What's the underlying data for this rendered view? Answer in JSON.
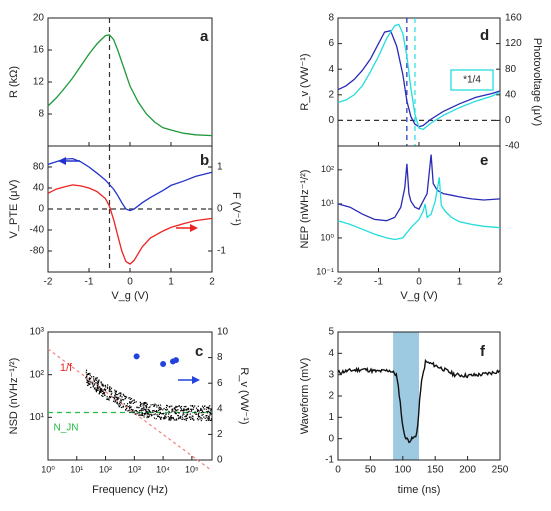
{
  "colors": {
    "green": "#1d9a3a",
    "blue": "#2233cc",
    "red": "#ee2222",
    "cyan": "#22dddd",
    "navy": "#2a2ab8",
    "black": "#111111",
    "pink": "#f08080",
    "ngreen": "#22bb44",
    "highlight": "#9ecae1"
  },
  "panels": {
    "a": {
      "letter": "a",
      "ylabel": "R (kΩ)",
      "yticks": [
        "20",
        "16",
        "12",
        "8"
      ]
    },
    "b": {
      "letter": "b",
      "ylabel": "V_PTE (μV)",
      "ylabel_right": "F (V⁻¹)",
      "yticks": [
        "80",
        "40",
        "0",
        "-40",
        "-80"
      ],
      "yticks_right": [
        "1",
        "0",
        "-1"
      ],
      "xticks": [
        "-2",
        "-1",
        "0",
        "1",
        "2"
      ],
      "xlabel": "V_g (V)"
    },
    "c": {
      "letter": "c",
      "ylabel": "NSD (nVHz⁻¹/²)",
      "ylabel_right": "R_v (VW⁻¹)",
      "xlabel": "Frequency (Hz)",
      "label_1f": "1/f",
      "label_nw": "N_JN",
      "xticks": [
        "10⁰",
        "10¹",
        "10²",
        "10³",
        "10⁴",
        "10⁵"
      ],
      "yticks": [
        "10³",
        "10²",
        "10¹"
      ],
      "yticks_right": [
        "10",
        "8",
        "6",
        "4",
        "2",
        "0"
      ]
    },
    "d": {
      "letter": "d",
      "ylabel": "R_v (VW⁻¹)",
      "ylabel_right": "Photovoltage (μV)",
      "yticks": [
        "8",
        "6",
        "4",
        "2",
        "0"
      ],
      "yticks_right": [
        "160",
        "120",
        "80",
        "40",
        "0",
        "-40"
      ],
      "legend_box": "*1/4"
    },
    "e": {
      "letter": "e",
      "ylabel": "NEP (nWHz⁻¹/²)",
      "xlabel": "V_g (V)",
      "xticks": [
        "-2",
        "-1",
        "0",
        "1",
        "2"
      ],
      "yticks": [
        "10²",
        "10¹",
        "10⁰",
        "10⁻¹"
      ]
    },
    "f": {
      "letter": "f",
      "ylabel": "Waveform (mV)",
      "xlabel": "time (ns)",
      "xticks": [
        "0",
        "50",
        "100",
        "150",
        "200",
        "250"
      ],
      "yticks": [
        "5",
        "4",
        "3",
        "2",
        "1",
        "0",
        "-1"
      ]
    }
  },
  "chart_data": [
    {
      "panel": "a",
      "type": "line",
      "xlabel": "",
      "ylabel": "R (kΩ)",
      "xlim": [
        -2,
        2
      ],
      "ylim": [
        4,
        20
      ],
      "vline": -0.5,
      "series": [
        {
          "color": "green",
          "x": [
            -2,
            -1.8,
            -1.6,
            -1.4,
            -1.2,
            -1.0,
            -0.8,
            -0.6,
            -0.5,
            -0.4,
            -0.3,
            -0.2,
            -0.1,
            0,
            0.2,
            0.4,
            0.6,
            0.8,
            1.0,
            1.3,
            1.6,
            2.0
          ],
          "y": [
            9.0,
            10.0,
            11.2,
            12.5,
            14.0,
            15.5,
            16.8,
            17.8,
            17.9,
            17.3,
            16.0,
            14.5,
            13.0,
            11.5,
            9.5,
            8.0,
            7.0,
            6.3,
            6.0,
            5.6,
            5.4,
            5.3
          ]
        }
      ]
    },
    {
      "panel": "b",
      "type": "line",
      "xlabel": "V_g (V)",
      "ylabel": "V_PTE (μV)",
      "xlim": [
        -2,
        2
      ],
      "ylim": [
        -120,
        120
      ],
      "y2lim": [
        -1.5,
        1.5
      ],
      "vline": -0.5,
      "hline": 0,
      "series": [
        {
          "color": "blue",
          "axis": "left",
          "x": [
            -2,
            -1.8,
            -1.6,
            -1.4,
            -1.2,
            -1.0,
            -0.8,
            -0.6,
            -0.4,
            -0.3,
            -0.2,
            -0.1,
            0,
            0.1,
            0.3,
            0.5,
            0.8,
            1.0,
            1.3,
            1.6,
            2.0
          ],
          "y": [
            85,
            90,
            95,
            96,
            90,
            80,
            68,
            55,
            38,
            26,
            12,
            0,
            -3,
            0,
            12,
            22,
            35,
            45,
            53,
            62,
            70
          ]
        },
        {
          "color": "red",
          "axis": "left",
          "x": [
            -2,
            -1.8,
            -1.6,
            -1.4,
            -1.2,
            -1.0,
            -0.8,
            -0.6,
            -0.5,
            -0.4,
            -0.3,
            -0.2,
            -0.1,
            0,
            0.1,
            0.2,
            0.3,
            0.5,
            0.8,
            1.0,
            1.3,
            1.6,
            2.0
          ],
          "y": [
            30,
            38,
            42,
            46,
            44,
            40,
            33,
            20,
            5,
            -20,
            -50,
            -80,
            -100,
            -105,
            -98,
            -85,
            -72,
            -55,
            -42,
            -35,
            -28,
            -22,
            -18
          ]
        }
      ]
    },
    {
      "panel": "c",
      "type": "scatter",
      "xlabel": "Frequency (Hz)",
      "ylabel": "NSD (nVHz⁻¹/²)",
      "xscale": "log",
      "yscale": "log",
      "xlim": [
        1,
        500000
      ],
      "ylim": [
        1,
        1000
      ],
      "y2lim": [
        0,
        10
      ],
      "noise_floor": 13,
      "one_over_f": {
        "x": [
          1,
          500000
        ],
        "y": [
          400,
          0.56
        ]
      },
      "rv_points": {
        "x": [
          1200,
          10000,
          22000,
          28000
        ],
        "y": [
          8.1,
          7.5,
          7.7,
          7.8
        ]
      },
      "arrow_right": true
    },
    {
      "panel": "d",
      "type": "line",
      "xlabel": "",
      "ylabel": "R_v (VW⁻¹)",
      "xlim": [
        -2,
        2
      ],
      "ylim": [
        -2,
        8
      ],
      "y2lim": [
        -40,
        160
      ],
      "hline": 0,
      "vlines": [
        {
          "x": -0.3,
          "color": "navy"
        },
        {
          "x": -0.1,
          "color": "cyan"
        }
      ],
      "series": [
        {
          "color": "navy",
          "x": [
            -2,
            -1.8,
            -1.6,
            -1.4,
            -1.2,
            -1.0,
            -0.85,
            -0.7,
            -0.55,
            -0.4,
            -0.3,
            -0.2,
            -0.1,
            0,
            0.1,
            0.3,
            0.6,
            1.0,
            1.4,
            1.8,
            2.0
          ],
          "y": [
            2.4,
            2.7,
            3.2,
            3.9,
            4.8,
            6.0,
            6.9,
            7.0,
            5.8,
            3.6,
            1.5,
            0.3,
            -0.3,
            -0.5,
            -0.4,
            0.1,
            0.7,
            1.3,
            1.8,
            2.1,
            2.3
          ]
        },
        {
          "color": "cyan",
          "x": [
            -2,
            -1.8,
            -1.6,
            -1.4,
            -1.2,
            -1.0,
            -0.8,
            -0.6,
            -0.5,
            -0.4,
            -0.3,
            -0.2,
            -0.1,
            0,
            0.1,
            0.3,
            0.6,
            1.0,
            1.4,
            1.8,
            2.0
          ],
          "y": [
            1.4,
            1.6,
            2.0,
            2.7,
            3.8,
            5.0,
            6.4,
            7.4,
            7.5,
            6.8,
            5.0,
            2.5,
            0.5,
            -0.6,
            -0.7,
            -0.2,
            0.4,
            1.0,
            1.5,
            1.9,
            2.2
          ]
        }
      ]
    },
    {
      "panel": "e",
      "type": "line",
      "xlabel": "V_g (V)",
      "ylabel": "NEP (nWHz⁻¹/²)",
      "yscale": "log",
      "xlim": [
        -2,
        2
      ],
      "ylim": [
        0.1,
        500
      ],
      "series": [
        {
          "color": "navy",
          "x": [
            -2,
            -1.7,
            -1.4,
            -1.1,
            -0.8,
            -0.6,
            -0.45,
            -0.35,
            -0.3,
            -0.25,
            -0.2,
            -0.1,
            0,
            0.1,
            0.2,
            0.3,
            0.35,
            0.45,
            0.6,
            0.8,
            1.0,
            1.3,
            1.6,
            2.0
          ],
          "y": [
            10,
            8,
            5,
            3.5,
            3.2,
            4,
            8,
            30,
            150,
            20,
            12,
            8,
            7,
            12,
            20,
            280,
            40,
            25,
            20,
            18,
            16,
            14,
            13,
            14
          ]
        },
        {
          "color": "cyan",
          "x": [
            -2,
            -1.7,
            -1.4,
            -1.1,
            -0.8,
            -0.6,
            -0.4,
            -0.2,
            0,
            0.1,
            0.15,
            0.2,
            0.3,
            0.4,
            0.5,
            0.55,
            0.65,
            0.8,
            1.0,
            1.3,
            1.6,
            2.0
          ],
          "y": [
            3.2,
            2.5,
            1.8,
            1.3,
            1.0,
            0.9,
            1.0,
            2.0,
            3.5,
            6,
            10,
            4,
            5,
            12,
            60,
            9,
            6,
            4,
            3,
            2.5,
            2.2,
            2.0
          ]
        }
      ]
    },
    {
      "panel": "f",
      "type": "line",
      "xlabel": "time (ns)",
      "ylabel": "Waveform (mV)",
      "xlim": [
        0,
        250
      ],
      "ylim": [
        -1,
        5
      ],
      "shade": [
        85,
        125
      ],
      "series": [
        {
          "color": "black",
          "x": [
            0,
            20,
            40,
            60,
            80,
            90,
            95,
            100,
            105,
            110,
            115,
            120,
            123,
            128,
            135,
            145,
            160,
            180,
            200,
            220,
            240,
            250
          ],
          "y": [
            3.1,
            3.2,
            3.25,
            3.15,
            3.2,
            3.0,
            2.0,
            0.5,
            0.0,
            -0.1,
            0.0,
            0.1,
            0.6,
            2.5,
            3.6,
            3.5,
            3.3,
            3.0,
            2.95,
            3.0,
            3.1,
            3.2
          ]
        }
      ]
    }
  ]
}
